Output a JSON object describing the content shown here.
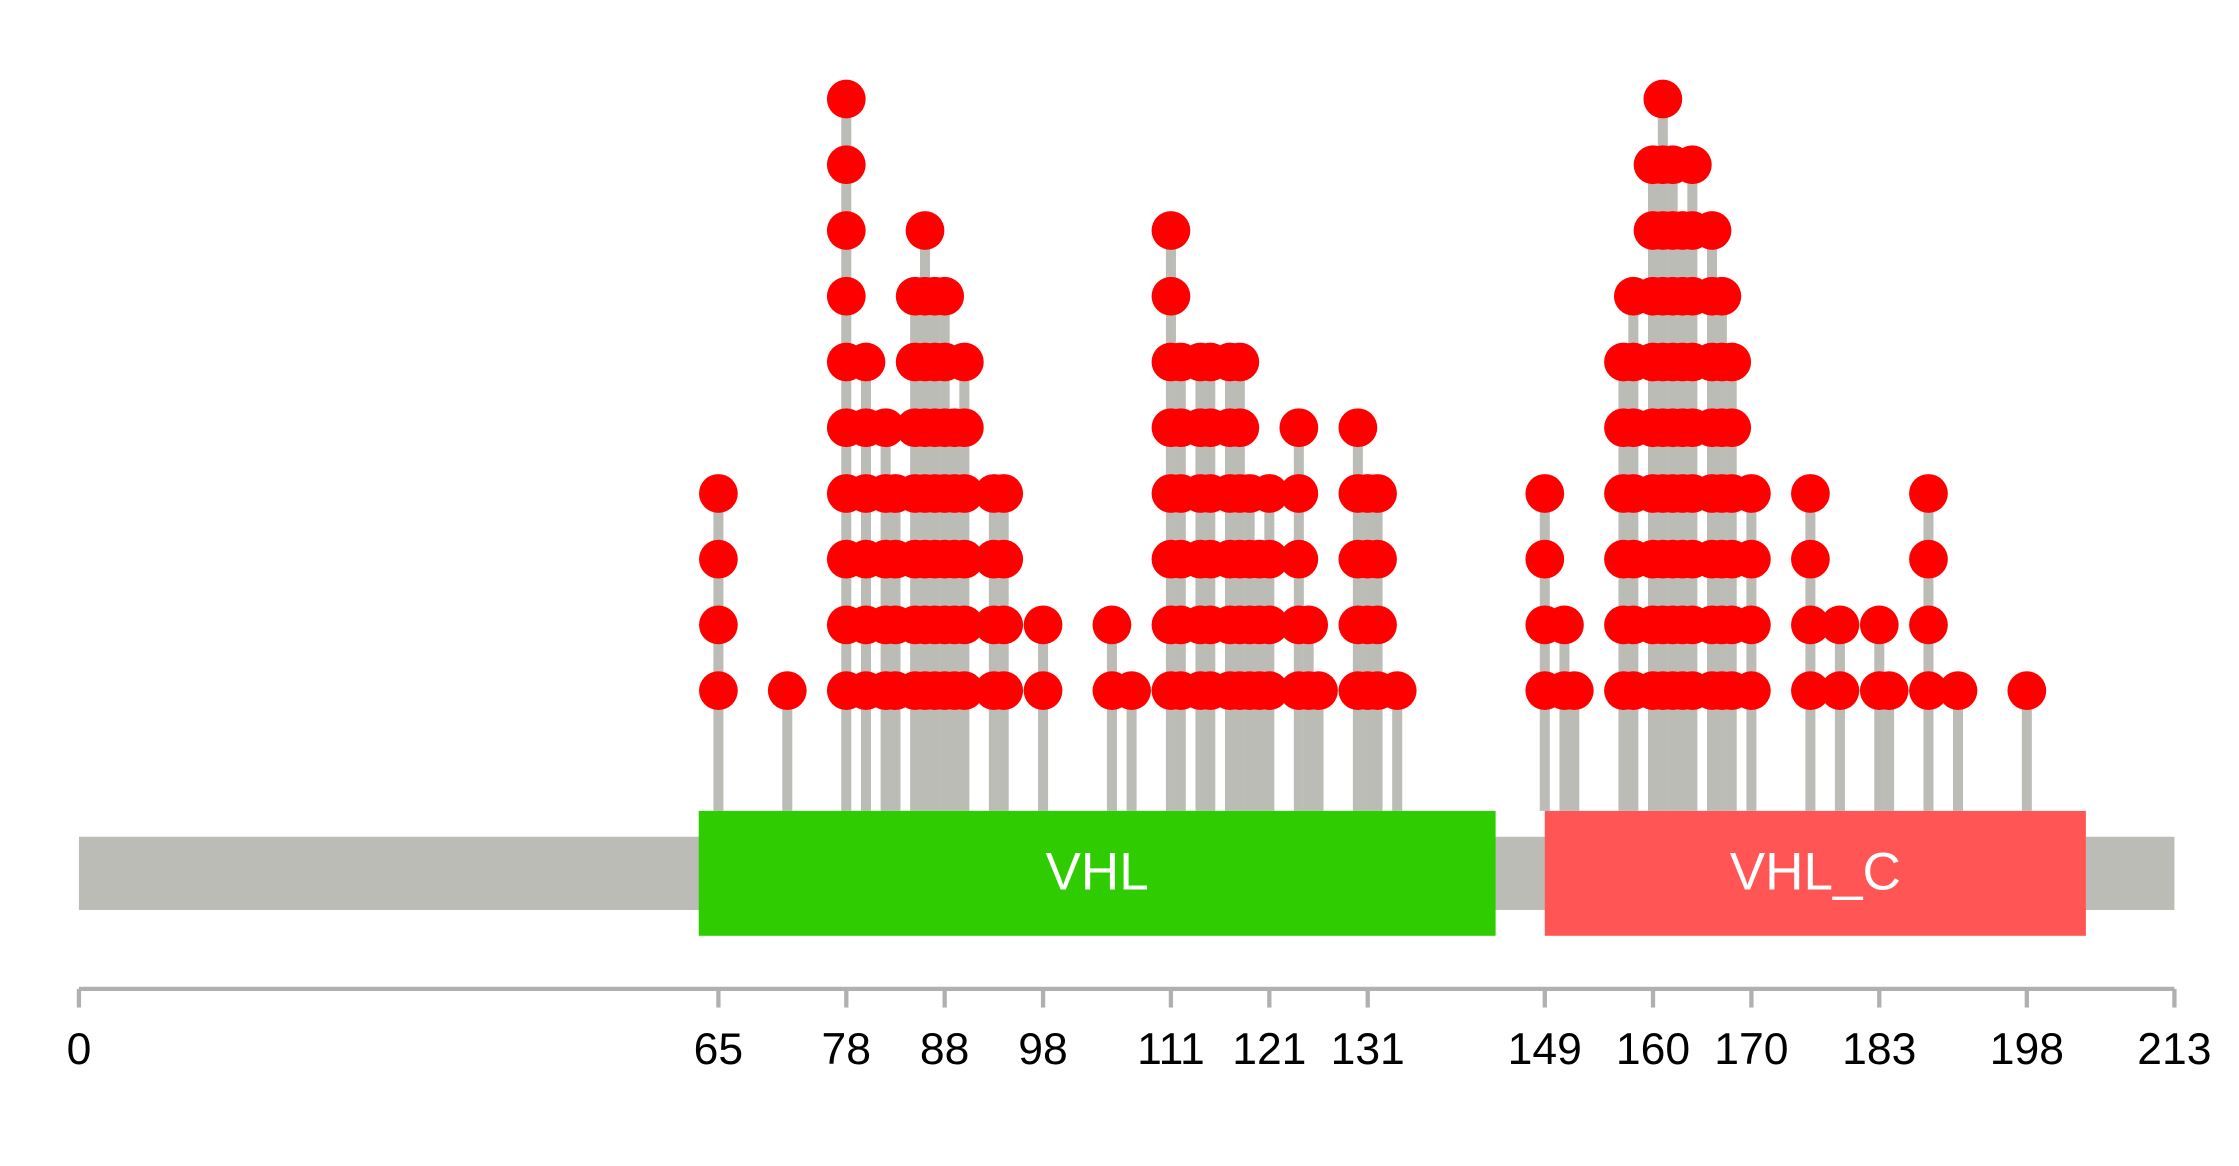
{
  "chart_data": {
    "type": "lollipop",
    "xlim": [
      0,
      213
    ],
    "xticks": [
      0,
      65,
      78,
      88,
      98,
      111,
      121,
      131,
      149,
      160,
      170,
      183,
      198,
      213
    ],
    "backbone_color": "#bbbcb6",
    "domains": [
      {
        "name": "VHL",
        "start": 63,
        "end": 144,
        "color": "#2ecc00"
      },
      {
        "name": "VHL_C",
        "start": 149,
        "end": 204,
        "color": "#ff5555"
      }
    ],
    "color": "#ff0000",
    "x": [
      65,
      72,
      78,
      80,
      82,
      83,
      85,
      86,
      87,
      88,
      89,
      90,
      93,
      94,
      98,
      105,
      107,
      111,
      112,
      114,
      115,
      117,
      118,
      119,
      120,
      121,
      124,
      125,
      126,
      130,
      131,
      132,
      134,
      149,
      151,
      152,
      157,
      158,
      160,
      161,
      162,
      163,
      164,
      166,
      167,
      168,
      170,
      176,
      179,
      183,
      184,
      188,
      191,
      198
    ],
    "values": [
      4,
      1,
      10,
      6,
      5,
      4,
      7,
      8,
      7,
      7,
      5,
      6,
      4,
      4,
      2,
      2,
      1,
      8,
      6,
      6,
      6,
      6,
      6,
      4,
      3,
      4,
      5,
      2,
      1,
      5,
      4,
      4,
      1,
      4,
      2,
      1,
      6,
      7,
      9,
      10,
      9,
      8,
      9,
      8,
      7,
      6,
      4,
      4,
      2,
      2,
      1,
      4,
      1,
      1
    ]
  }
}
